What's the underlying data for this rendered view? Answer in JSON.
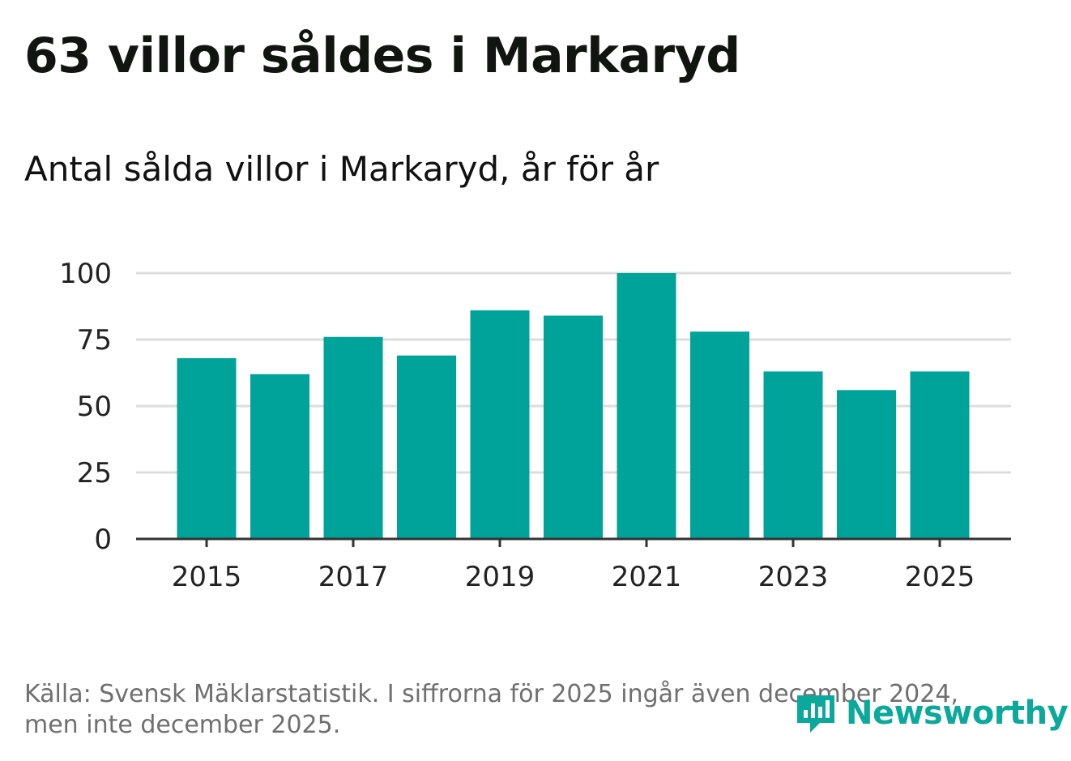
{
  "title": "63 villor såldes i Markaryd",
  "subtitle": "Antal sålda villor i Markaryd, år för år",
  "source": "Källa: Svensk Mäklarstatistik. I siffrorna för 2025 ingår även december 2024, men inte december 2025.",
  "logo": {
    "text": "Newsworthy",
    "icon": "newsworthy-logo-icon"
  },
  "colors": {
    "bar": "#00a39a",
    "grid": "#dddddd",
    "axis": "#333333",
    "logo": "#0aa99b"
  },
  "chart_data": {
    "type": "bar",
    "title": "Antal sålda villor i Markaryd, år för år",
    "xlabel": "",
    "ylabel": "",
    "categories": [
      "2015",
      "2016",
      "2017",
      "2018",
      "2019",
      "2020",
      "2021",
      "2022",
      "2023",
      "2024",
      "2025"
    ],
    "values": [
      68,
      62,
      76,
      69,
      86,
      84,
      100,
      78,
      63,
      56,
      63
    ],
    "x_tick_labels": [
      "2015",
      "2017",
      "2019",
      "2021",
      "2023",
      "2025"
    ],
    "y_ticks": [
      0,
      25,
      50,
      75,
      100
    ],
    "ylim": [
      0,
      100
    ],
    "grid": true,
    "legend": "none"
  }
}
